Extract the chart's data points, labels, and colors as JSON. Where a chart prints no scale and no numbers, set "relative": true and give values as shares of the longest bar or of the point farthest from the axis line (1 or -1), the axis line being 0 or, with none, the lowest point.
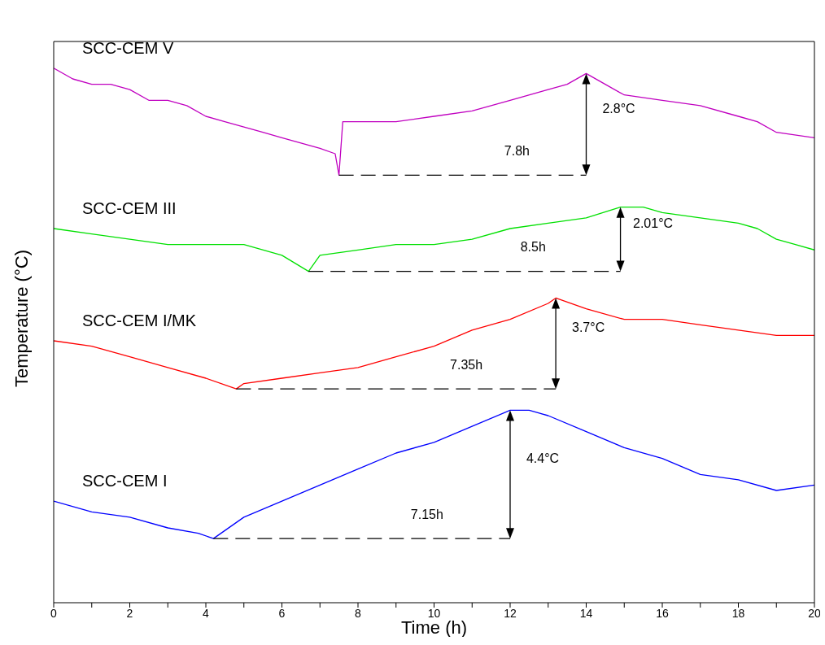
{
  "chart_data": {
    "type": "line",
    "relative": true,
    "xlabel": "Time (h)",
    "ylabel": "Temperature (°C)",
    "xlim": [
      0,
      20
    ],
    "xticks": [
      0,
      {
        "value": 1,
        "label": null
      },
      2,
      {
        "value": 3,
        "label": null
      },
      4,
      {
        "value": 5,
        "label": null
      },
      6,
      {
        "value": 7,
        "label": null
      },
      8,
      {
        "value": 9,
        "label": null
      },
      10,
      {
        "value": 11,
        "label": null
      },
      12,
      {
        "value": 13,
        "label": null
      },
      14,
      {
        "value": 15,
        "label": null
      },
      16,
      {
        "value": 17,
        "label": null
      },
      18,
      {
        "value": 19,
        "label": null
      },
      20
    ],
    "grid": false,
    "legend": false,
    "marker": "none",
    "line_style": "solid",
    "series": [
      {
        "name": "SCC-CEM V",
        "color": "#c000c0",
        "x": [
          0,
          0.5,
          1,
          1.5,
          2,
          2.5,
          3,
          3.5,
          4,
          4.5,
          5,
          5.5,
          6,
          6.5,
          7,
          7.4,
          7.5,
          7.6,
          8,
          9,
          10,
          11,
          12,
          13,
          13.5,
          14,
          14.5,
          15,
          16,
          17,
          18,
          18.5,
          19,
          20
        ],
        "values": [
          1.0,
          0.98,
          0.97,
          0.97,
          0.96,
          0.94,
          0.94,
          0.93,
          0.91,
          0.9,
          0.89,
          0.88,
          0.87,
          0.86,
          0.85,
          0.84,
          0.8,
          0.9,
          0.9,
          0.9,
          0.91,
          0.92,
          0.94,
          0.96,
          0.97,
          0.99,
          0.97,
          0.95,
          0.94,
          0.93,
          0.91,
          0.9,
          0.88,
          0.87
        ]
      },
      {
        "name": "SCC-CEM III",
        "color": "#00e000",
        "x": [
          0,
          1,
          2,
          3,
          4,
          5,
          6,
          6.7,
          7,
          8,
          9,
          10,
          11,
          12,
          13,
          14,
          14.9,
          15.5,
          16,
          17,
          18,
          18.5,
          19,
          19.5,
          20
        ],
        "values": [
          0.7,
          0.69,
          0.68,
          0.67,
          0.67,
          0.67,
          0.65,
          0.62,
          0.65,
          0.66,
          0.67,
          0.67,
          0.68,
          0.7,
          0.71,
          0.72,
          0.74,
          0.74,
          0.73,
          0.72,
          0.71,
          0.7,
          0.68,
          0.67,
          0.66
        ]
      },
      {
        "name": "SCC-CEM I/MK",
        "color": "#ff0000",
        "x": [
          0,
          1,
          2,
          3,
          4,
          4.8,
          5,
          6,
          7,
          8,
          9,
          10,
          11,
          12,
          13,
          13.2,
          14,
          15,
          16,
          17,
          18,
          19,
          20
        ],
        "values": [
          0.49,
          0.48,
          0.46,
          0.44,
          0.42,
          0.4,
          0.41,
          0.42,
          0.43,
          0.44,
          0.46,
          0.48,
          0.51,
          0.53,
          0.56,
          0.57,
          0.55,
          0.53,
          0.53,
          0.52,
          0.51,
          0.5,
          0.5
        ]
      },
      {
        "name": "SCC-CEM I",
        "color": "#0000ff",
        "x": [
          0,
          1,
          2,
          3,
          3.8,
          4.2,
          5,
          6,
          7,
          8,
          9,
          10,
          11,
          12,
          12.5,
          13,
          14,
          15,
          16,
          17,
          18,
          19,
          20
        ],
        "values": [
          0.19,
          0.17,
          0.16,
          0.14,
          0.13,
          0.12,
          0.16,
          0.19,
          0.22,
          0.25,
          0.28,
          0.3,
          0.33,
          0.36,
          0.36,
          0.35,
          0.32,
          0.29,
          0.27,
          0.24,
          0.23,
          0.21,
          0.22
        ]
      },
      {
        "color": "#000000",
        "line_style": "dashed",
        "x": [
          7.5,
          14
        ],
        "values": [
          0.8,
          0.8
        ]
      },
      {
        "color": "#000000",
        "line_style": "dashed",
        "x": [
          6.7,
          14.9
        ],
        "values": [
          0.62,
          0.62
        ]
      },
      {
        "color": "#000000",
        "line_style": "dashed",
        "x": [
          4.8,
          13.2
        ],
        "values": [
          0.4,
          0.4
        ]
      },
      {
        "color": "#000000",
        "line_style": "dashed",
        "x": [
          4.2,
          12
        ],
        "values": [
          0.12,
          0.12
        ]
      }
    ],
    "annotations": [
      "7.8h",
      "2.8°C",
      "8.5h",
      "2.01°C",
      "7.35h",
      "3.7°C",
      "7.15h",
      "4.4°C"
    ]
  }
}
